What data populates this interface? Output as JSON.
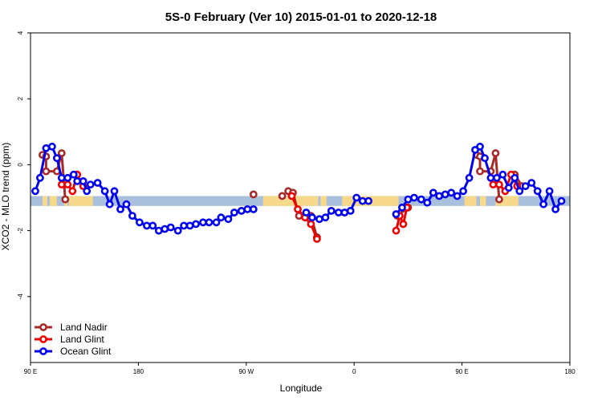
{
  "chart_data": {
    "type": "line",
    "title": "5S-0 February (Ver 10)   2015-01-01 to 2020-12-18",
    "xlabel": "Longitude",
    "ylabel": "XCO2 - MLO trend (ppm)",
    "xlim": [
      90,
      540
    ],
    "ylim": [
      -6,
      4
    ],
    "xticks": [
      {
        "value": 90,
        "label": "90 E"
      },
      {
        "value": 180,
        "label": "180"
      },
      {
        "value": 270,
        "label": "90 W"
      },
      {
        "value": 360,
        "label": "0"
      },
      {
        "value": 450,
        "label": "90 E"
      },
      {
        "value": 540,
        "label": "180"
      }
    ],
    "yticks": [
      {
        "value": -4,
        "label": "-4"
      },
      {
        "value": -2,
        "label": "-2"
      },
      {
        "value": 0,
        "label": "0"
      },
      {
        "value": 2,
        "label": "2"
      },
      {
        "value": 4,
        "label": "4"
      }
    ],
    "land_mask_band": {
      "y_range": [
        -1.25,
        -0.95
      ],
      "ocean_color": "#a9bfdc",
      "land_color": "#f7d98c",
      "land_segments": [
        [
          100,
          104
        ],
        [
          106,
          112
        ],
        [
          118,
          121
        ],
        [
          122,
          142
        ],
        [
          284,
          330
        ],
        [
          332,
          337
        ],
        [
          350,
          397
        ],
        [
          452,
          462
        ],
        [
          465,
          470
        ],
        [
          478,
          497
        ]
      ]
    },
    "legend": {
      "position": "bottom-left",
      "entries": [
        "Land Nadir",
        "Land Glint",
        "Ocean Glint"
      ]
    },
    "series": [
      {
        "name": "Ocean Glint",
        "color": "#0000ee",
        "segments": [
          [
            [
              94,
              -0.8
            ],
            [
              98,
              -0.4
            ],
            [
              103,
              0.5
            ],
            [
              108,
              0.55
            ],
            [
              112,
              0.2
            ],
            [
              116,
              -0.4
            ],
            [
              121,
              -0.4
            ],
            [
              126,
              -0.3
            ],
            [
              129,
              -0.5
            ],
            [
              134,
              -0.5
            ],
            [
              137,
              -0.8
            ],
            [
              140,
              -0.6
            ],
            [
              146,
              -0.55
            ],
            [
              152,
              -0.8
            ],
            [
              156,
              -1.2
            ],
            [
              160,
              -0.8
            ],
            [
              165,
              -1.35
            ],
            [
              170,
              -1.2
            ],
            [
              175,
              -1.55
            ],
            [
              181,
              -1.75
            ],
            [
              187,
              -1.85
            ],
            [
              192,
              -1.85
            ],
            [
              197,
              -2.0
            ],
            [
              202,
              -1.95
            ],
            [
              207,
              -1.9
            ],
            [
              213,
              -2.0
            ],
            [
              218,
              -1.85
            ],
            [
              223,
              -1.85
            ],
            [
              228,
              -1.8
            ],
            [
              234,
              -1.75
            ],
            [
              239,
              -1.75
            ],
            [
              245,
              -1.75
            ],
            [
              249,
              -1.6
            ],
            [
              255,
              -1.65
            ],
            [
              260,
              -1.45
            ],
            [
              266,
              -1.4
            ],
            [
              271,
              -1.35
            ],
            [
              276,
              -1.35
            ]
          ],
          [
            [
              320,
              -1.45
            ],
            [
              325,
              -1.6
            ],
            [
              331,
              -1.65
            ],
            [
              336,
              -1.6
            ],
            [
              341,
              -1.4
            ],
            [
              347,
              -1.45
            ],
            [
              352,
              -1.45
            ],
            [
              357,
              -1.4
            ],
            [
              362,
              -1.0
            ],
            [
              367,
              -1.1
            ],
            [
              372,
              -1.1
            ]
          ],
          [
            [
              395,
              -1.5
            ],
            [
              400,
              -1.3
            ],
            [
              405,
              -1.05
            ],
            [
              410,
              -1.0
            ],
            [
              416,
              -1.05
            ],
            [
              421,
              -1.15
            ],
            [
              426,
              -0.85
            ],
            [
              431,
              -0.95
            ],
            [
              436,
              -0.9
            ],
            [
              441,
              -0.85
            ],
            [
              446,
              -0.95
            ],
            [
              451,
              -0.8
            ],
            [
              456,
              -0.4
            ],
            [
              461,
              0.45
            ],
            [
              465,
              0.55
            ],
            [
              469,
              0.2
            ],
            [
              474,
              -0.4
            ],
            [
              479,
              -0.4
            ],
            [
              484,
              -0.3
            ],
            [
              489,
              -0.7
            ],
            [
              494,
              -0.4
            ],
            [
              498,
              -0.8
            ],
            [
              503,
              -0.65
            ],
            [
              508,
              -0.55
            ],
            [
              513,
              -0.8
            ],
            [
              518,
              -1.2
            ],
            [
              523,
              -0.8
            ],
            [
              528,
              -1.35
            ],
            [
              533,
              -1.1
            ]
          ]
        ]
      },
      {
        "name": "Land Glint",
        "color": "#ee0000",
        "segments": [
          [
            [
              116,
              -0.6
            ],
            [
              121,
              -0.6
            ],
            [
              125,
              -0.8
            ],
            [
              129,
              -0.3
            ],
            [
              134,
              -0.65
            ]
          ],
          [
            [
              308,
              -0.95
            ],
            [
              313,
              -1.35
            ],
            [
              319,
              -1.6
            ],
            [
              324,
              -1.8
            ],
            [
              329,
              -2.25
            ]
          ],
          [
            [
              395,
              -2.0
            ],
            [
              398,
              -1.55
            ],
            [
              401,
              -1.8
            ],
            [
              404,
              -1.3
            ]
          ],
          [
            [
              476,
              -0.6
            ],
            [
              481,
              -0.6
            ],
            [
              486,
              -0.8
            ],
            [
              491,
              -0.3
            ],
            [
              496,
              -0.65
            ]
          ]
        ]
      },
      {
        "name": "Land Nadir",
        "color": "#a52a2a",
        "segments": [
          [
            [
              100,
              0.3
            ],
            [
              103,
              0.25
            ],
            [
              103,
              -0.2
            ],
            [
              112,
              -0.2
            ],
            [
              116,
              0.35
            ],
            [
              119,
              -1.05
            ]
          ],
          [
            [
              276,
              -0.9
            ]
          ],
          [
            [
              300,
              -0.95
            ]
          ],
          [
            [
              305,
              -0.8
            ],
            [
              309,
              -0.85
            ],
            [
              314,
              -1.55
            ],
            [
              319,
              -1.55
            ],
            [
              324,
              -1.55
            ],
            [
              329,
              -2.2
            ]
          ],
          [
            [
              396,
              -1.55
            ],
            [
              405,
              -1.3
            ]
          ],
          [
            [
              462,
              0.3
            ],
            [
              465,
              0.25
            ],
            [
              465,
              -0.2
            ],
            [
              474,
              -0.2
            ],
            [
              478,
              0.35
            ],
            [
              481,
              -1.05
            ]
          ],
          [
            [
              494,
              -0.3
            ],
            [
              500,
              -0.65
            ]
          ]
        ]
      }
    ]
  }
}
